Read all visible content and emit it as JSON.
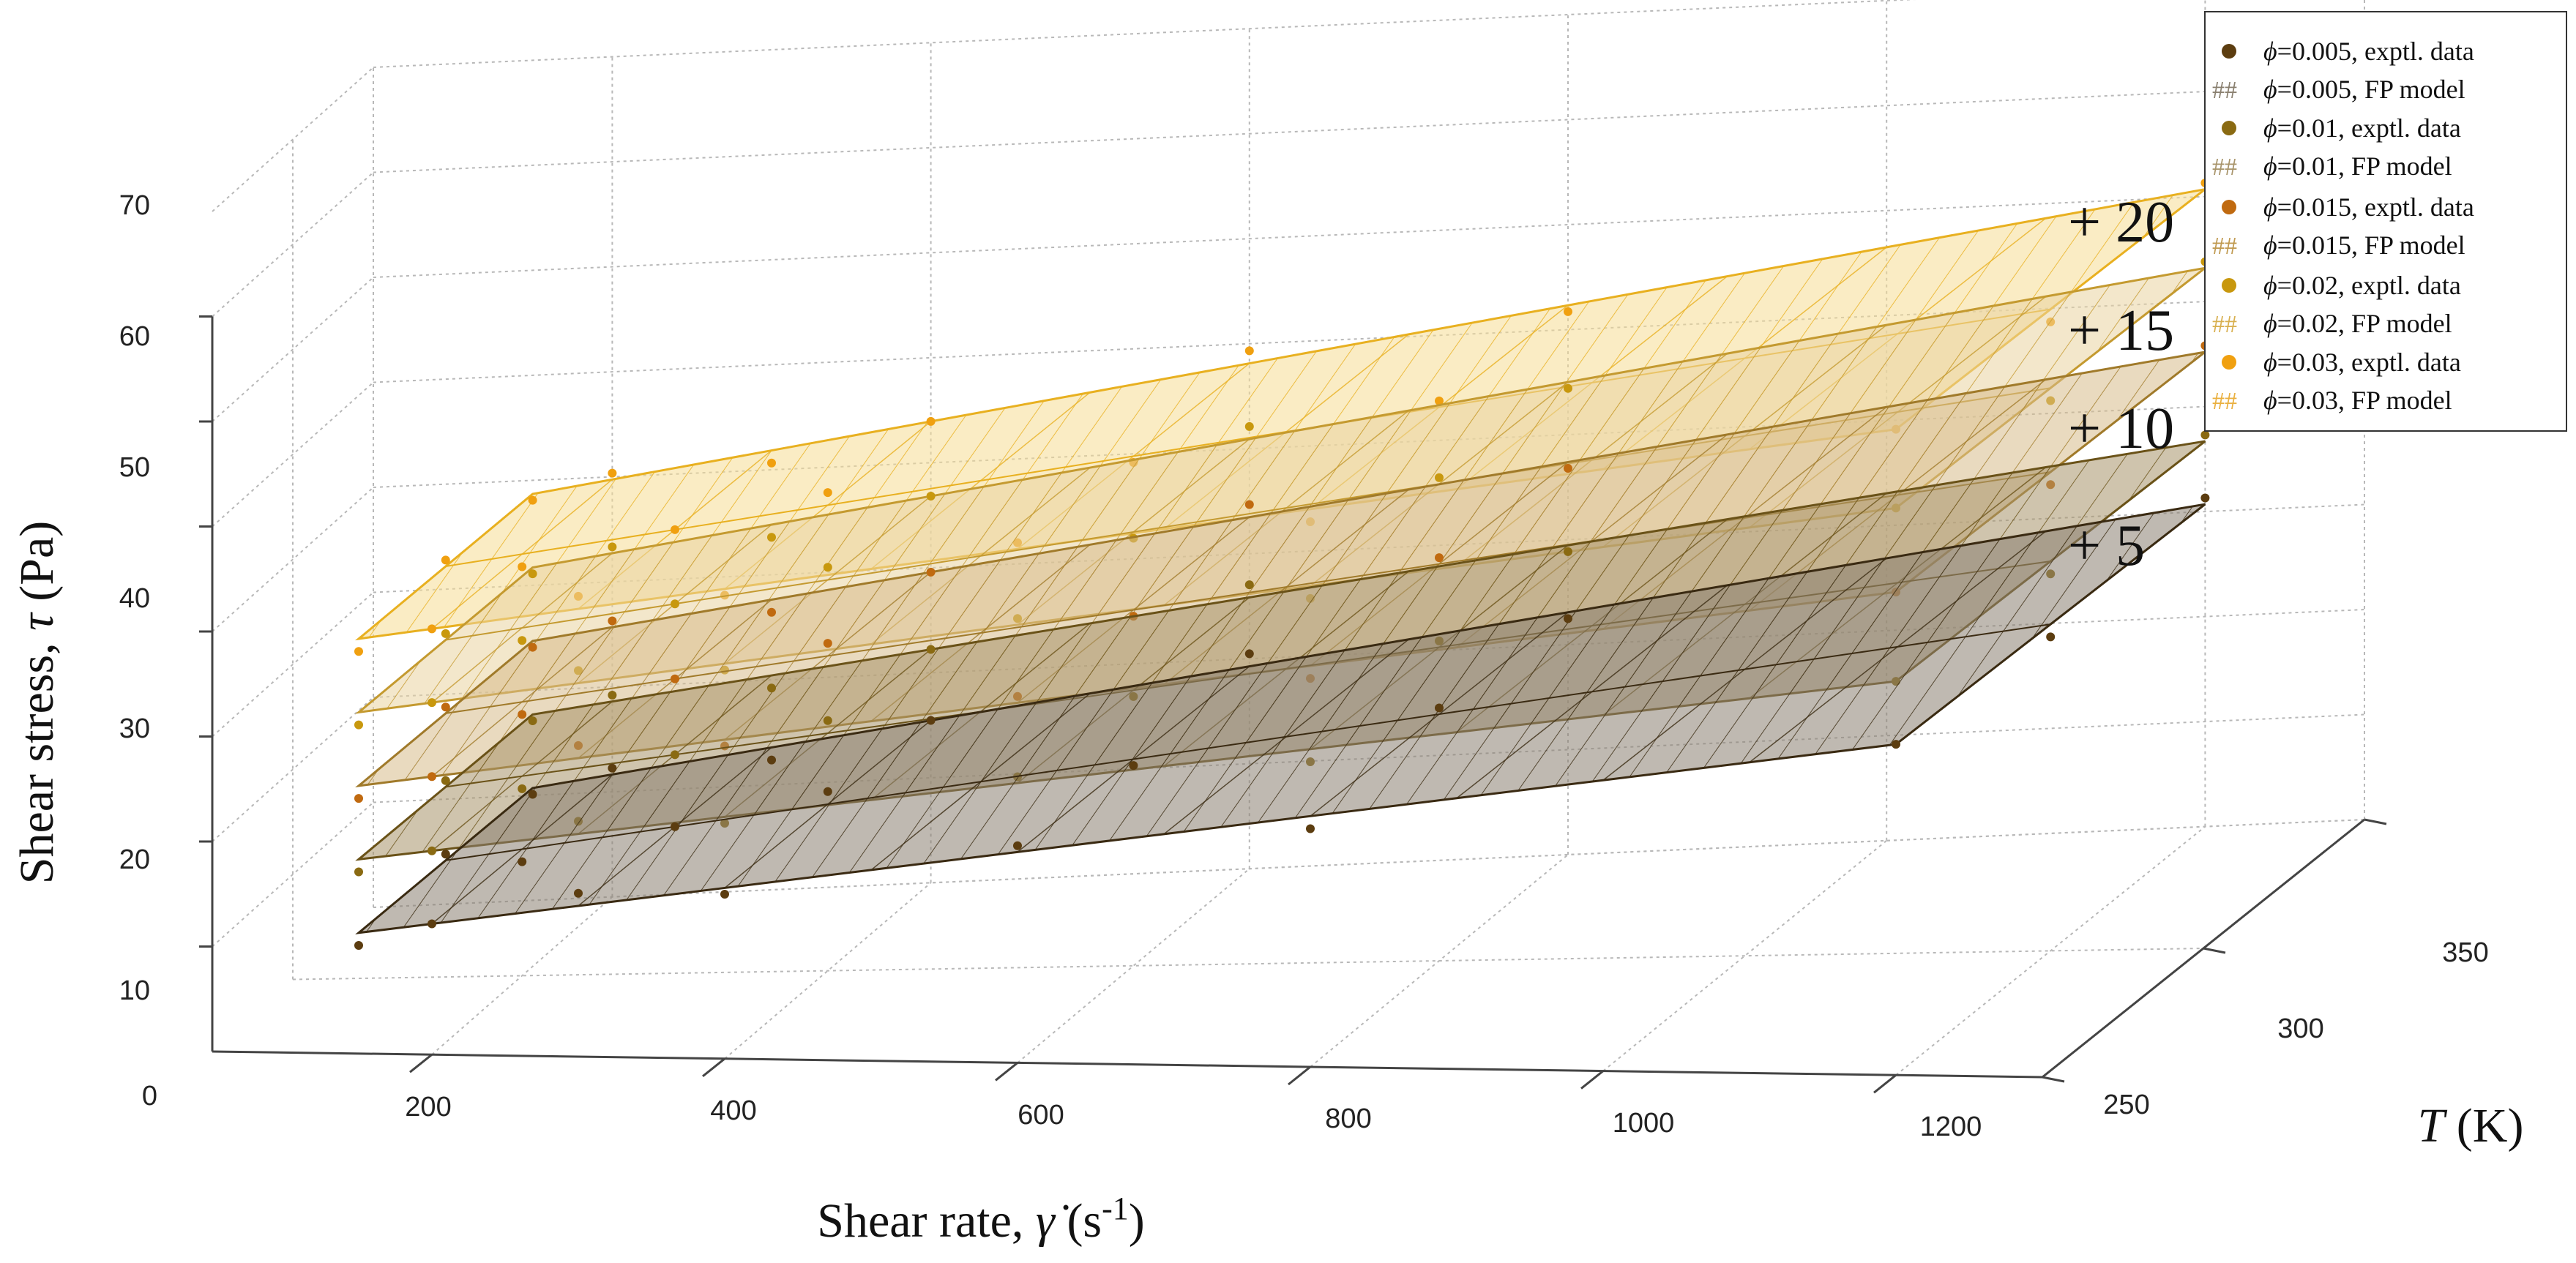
{
  "chart_data": {
    "type": "surface3d",
    "ylabel_prefix": "Shear stress, ",
    "ylabel_symbol": "τ",
    "ylabel_unit": " (Pa)",
    "xlabel_prefix": "Shear rate, ",
    "xlabel_symbol": "γ̇",
    "xlabel_unit_open": " (s",
    "xlabel_unit_exp": "-1",
    "xlabel_unit_close": ")",
    "zlabel_symbol": "T",
    "zlabel_unit": " (K)",
    "y_ticks": [
      "70",
      "60",
      "50",
      "40",
      "30",
      "20",
      "10",
      "0"
    ],
    "x_ticks": [
      "200",
      "400",
      "600",
      "800",
      "1000",
      "1200"
    ],
    "z_ticks": [
      "250",
      "300",
      "350"
    ],
    "ylim": [
      0,
      70
    ],
    "xlim": [
      50,
      1300
    ],
    "zlim": [
      250,
      350
    ],
    "offsets": [
      "",
      "+ 5",
      "+ 10",
      "+ 15",
      "+ 20"
    ],
    "series": [
      {
        "name": "ϕ=0.005",
        "exptl_label": "=0.005, exptl. data",
        "model_label": "=0.005, FP model",
        "color": "#5c3d10",
        "fill": "#8a8070",
        "line": "#3a2a12",
        "tau_low": 11.5,
        "tau_high": 31.5
      },
      {
        "name": "ϕ=0.01",
        "exptl_label": "=0.01, exptl. data",
        "model_label": "=0.01, FP model",
        "color": "#8a6a12",
        "fill": "#a8946a",
        "line": "#6a5218",
        "tau_low": 18.5,
        "tau_high": 37.5
      },
      {
        "name": "ϕ=0.015",
        "exptl_label": "=0.015, exptl. data",
        "model_label": "=0.015, FP model",
        "color": "#c06a10",
        "fill": "#d6bb8a",
        "line": "#a07a2a",
        "tau_low": 25.5,
        "tau_high": 46.0
      },
      {
        "name": "ϕ=0.02",
        "exptl_label": "=0.02, exptl. data",
        "model_label": "=0.02, FP model",
        "color": "#c8980e",
        "fill": "#e8d2a0",
        "line": "#c49a30",
        "tau_low": 32.5,
        "tau_high": 54.0
      },
      {
        "name": "ϕ=0.03",
        "exptl_label": "=0.03, exptl. data",
        "model_label": "=0.03, FP model",
        "color": "#f0a010",
        "fill": "#f6dc94",
        "line": "#e8b020",
        "tau_low": 39.5,
        "tau_high": 61.5
      }
    ],
    "legend_symbol": "ϕ",
    "legend_hash": "##",
    "legend_position": "top-right"
  }
}
